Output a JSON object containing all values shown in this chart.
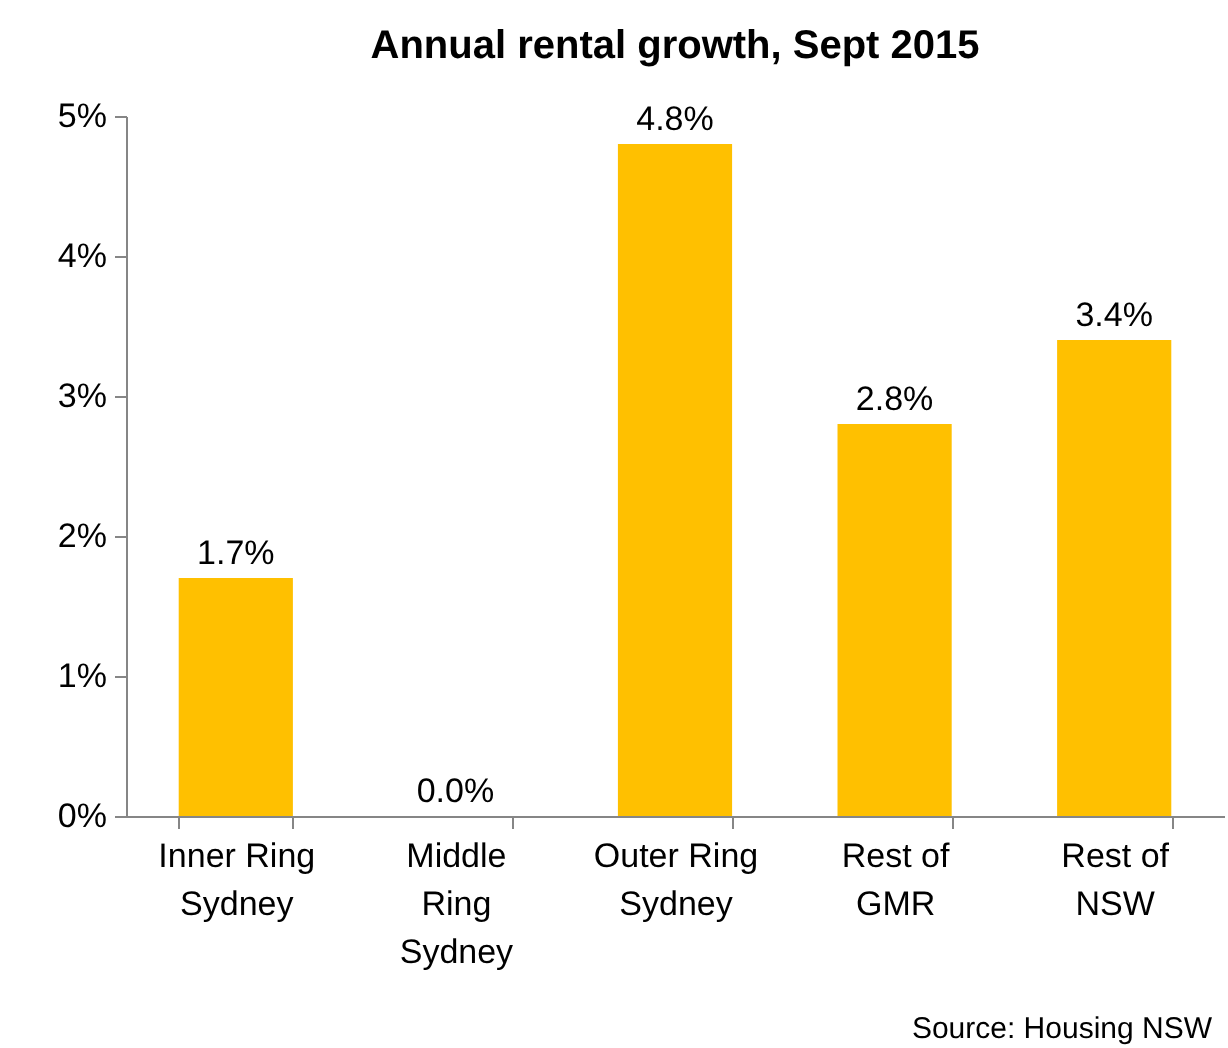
{
  "chart_data": {
    "type": "bar",
    "title": "Annual rental growth, Sept 2015",
    "categories": [
      "Inner Ring Sydney",
      "Middle Ring Sydney",
      "Outer Ring Sydney",
      "Rest of GMR",
      "Rest of NSW"
    ],
    "values": [
      1.7,
      0.0,
      4.8,
      2.8,
      3.4
    ],
    "value_labels": [
      "1.7%",
      "0.0%",
      "4.8%",
      "2.8%",
      "3.4%"
    ],
    "color": "#ffc000",
    "ylim": [
      0,
      5
    ],
    "yticks": [
      {
        "value": 0,
        "label": "0%"
      },
      {
        "value": 1,
        "label": "1%"
      },
      {
        "value": 2,
        "label": "2%"
      },
      {
        "value": 3,
        "label": "3%"
      },
      {
        "value": 4,
        "label": "4%"
      },
      {
        "value": 5,
        "label": "5%"
      }
    ],
    "grid": false,
    "annotations": [
      "Source: Housing NSW"
    ]
  }
}
